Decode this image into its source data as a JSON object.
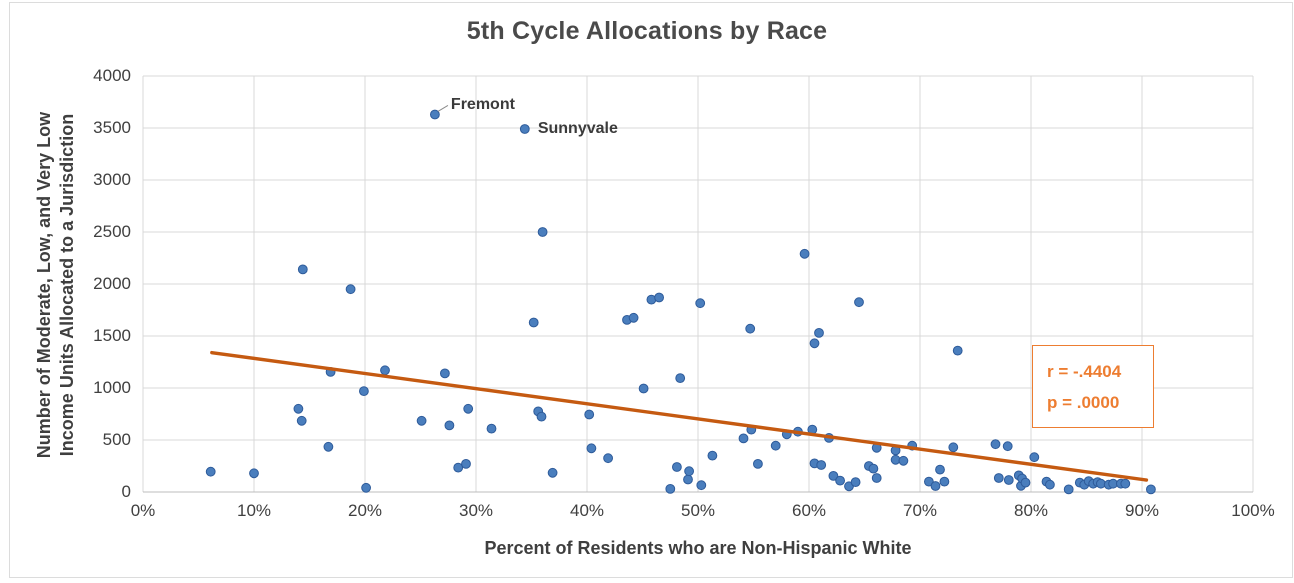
{
  "chart_data": {
    "type": "scatter",
    "title": "5th Cycle Allocations by Race",
    "xlabel": "Percent of Residents who are Non-Hispanic White",
    "ylabel_lines": [
      "Number of Moderate, Low, and Very Low",
      "Income Units Allocated to a Jurisdiction"
    ],
    "xlim": [
      0,
      100
    ],
    "ylim": [
      0,
      4000
    ],
    "x_ticks": [
      "0%",
      "10%",
      "20%",
      "30%",
      "40%",
      "50%",
      "60%",
      "70%",
      "80%",
      "90%",
      "100%"
    ],
    "y_ticks": [
      "0",
      "500",
      "1000",
      "1500",
      "2000",
      "2500",
      "3000",
      "3500",
      "4000"
    ],
    "grid": true,
    "legend": false,
    "points": [
      [
        6.1,
        195
      ],
      [
        10,
        180
      ],
      [
        14,
        800
      ],
      [
        14.3,
        685
      ],
      [
        14.4,
        2140
      ],
      [
        16.7,
        435
      ],
      [
        16.9,
        1155
      ],
      [
        18.7,
        1950
      ],
      [
        19.9,
        970
      ],
      [
        20.1,
        40
      ],
      [
        21.8,
        1170
      ],
      [
        25.1,
        685
      ],
      [
        26.3,
        3630
      ],
      [
        27.2,
        1140
      ],
      [
        27.6,
        640
      ],
      [
        28.4,
        235
      ],
      [
        29.1,
        270
      ],
      [
        29.3,
        800
      ],
      [
        31.4,
        610
      ],
      [
        34.4,
        3490
      ],
      [
        35.2,
        1630
      ],
      [
        35.6,
        775
      ],
      [
        35.9,
        725
      ],
      [
        36,
        2500
      ],
      [
        36.9,
        185
      ],
      [
        40.2,
        745
      ],
      [
        40.4,
        420
      ],
      [
        41.9,
        325
      ],
      [
        43.6,
        1655
      ],
      [
        44.2,
        1675
      ],
      [
        45.1,
        995
      ],
      [
        45.8,
        1850
      ],
      [
        46.5,
        1870
      ],
      [
        47.5,
        30
      ],
      [
        48.1,
        240
      ],
      [
        48.4,
        1095
      ],
      [
        49.1,
        120
      ],
      [
        49.2,
        200
      ],
      [
        50.2,
        1815
      ],
      [
        50.3,
        65
      ],
      [
        51.3,
        350
      ],
      [
        54.1,
        515
      ],
      [
        54.7,
        1570
      ],
      [
        54.8,
        600
      ],
      [
        55.4,
        270
      ],
      [
        57,
        445
      ],
      [
        58,
        555
      ],
      [
        59,
        580
      ],
      [
        59.6,
        2290
      ],
      [
        60.3,
        600
      ],
      [
        60.5,
        275
      ],
      [
        60.5,
        1430
      ],
      [
        60.9,
        1530
      ],
      [
        61.1,
        260
      ],
      [
        61.8,
        520
      ],
      [
        62.2,
        155
      ],
      [
        62.8,
        110
      ],
      [
        63.6,
        55
      ],
      [
        64.2,
        95
      ],
      [
        64.5,
        1825
      ],
      [
        65.4,
        250
      ],
      [
        65.8,
        225
      ],
      [
        66.1,
        135
      ],
      [
        66.1,
        425
      ],
      [
        67.8,
        400
      ],
      [
        67.8,
        310
      ],
      [
        68.5,
        300
      ],
      [
        69.3,
        445
      ],
      [
        70.8,
        100
      ],
      [
        71.4,
        58
      ],
      [
        71.8,
        215
      ],
      [
        72.2,
        100
      ],
      [
        73,
        430
      ],
      [
        73.4,
        1360
      ],
      [
        76.8,
        460
      ],
      [
        77.1,
        135
      ],
      [
        77.9,
        440
      ],
      [
        78,
        115
      ],
      [
        78.9,
        160
      ],
      [
        79.1,
        60
      ],
      [
        79.2,
        130
      ],
      [
        79.5,
        90
      ],
      [
        80.3,
        335
      ],
      [
        81.4,
        100
      ],
      [
        81.7,
        70
      ],
      [
        83.4,
        25
      ],
      [
        84.4,
        90
      ],
      [
        84.8,
        70
      ],
      [
        85.2,
        105
      ],
      [
        85.6,
        80
      ],
      [
        86,
        95
      ],
      [
        86.3,
        80
      ],
      [
        87,
        70
      ],
      [
        87.4,
        80
      ],
      [
        88.1,
        80
      ],
      [
        88.5,
        80
      ],
      [
        90.8,
        25
      ]
    ],
    "labeled_points": [
      {
        "label": "Fremont",
        "x": 26.3,
        "y": 3630
      },
      {
        "label": "Sunnyvale",
        "x": 34.4,
        "y": 3490
      }
    ],
    "trendline": {
      "x1": 6.2,
      "y1": 1340,
      "x2": 90.4,
      "y2": 115
    },
    "annotation": {
      "r_line": "r = -.4404",
      "p_line": "p = .0000"
    }
  },
  "colors": {
    "marker_fill": "#4A7EBD",
    "marker_stroke": "#2E5B9A",
    "trendline": "#C55A11",
    "annotation": "#ED7D31",
    "gridline": "#D9D9D9",
    "axis_line": "#BDBDBD",
    "frame": "#DCDCDC",
    "axis_text": "#404040",
    "title_text": "#4A4A4A"
  }
}
